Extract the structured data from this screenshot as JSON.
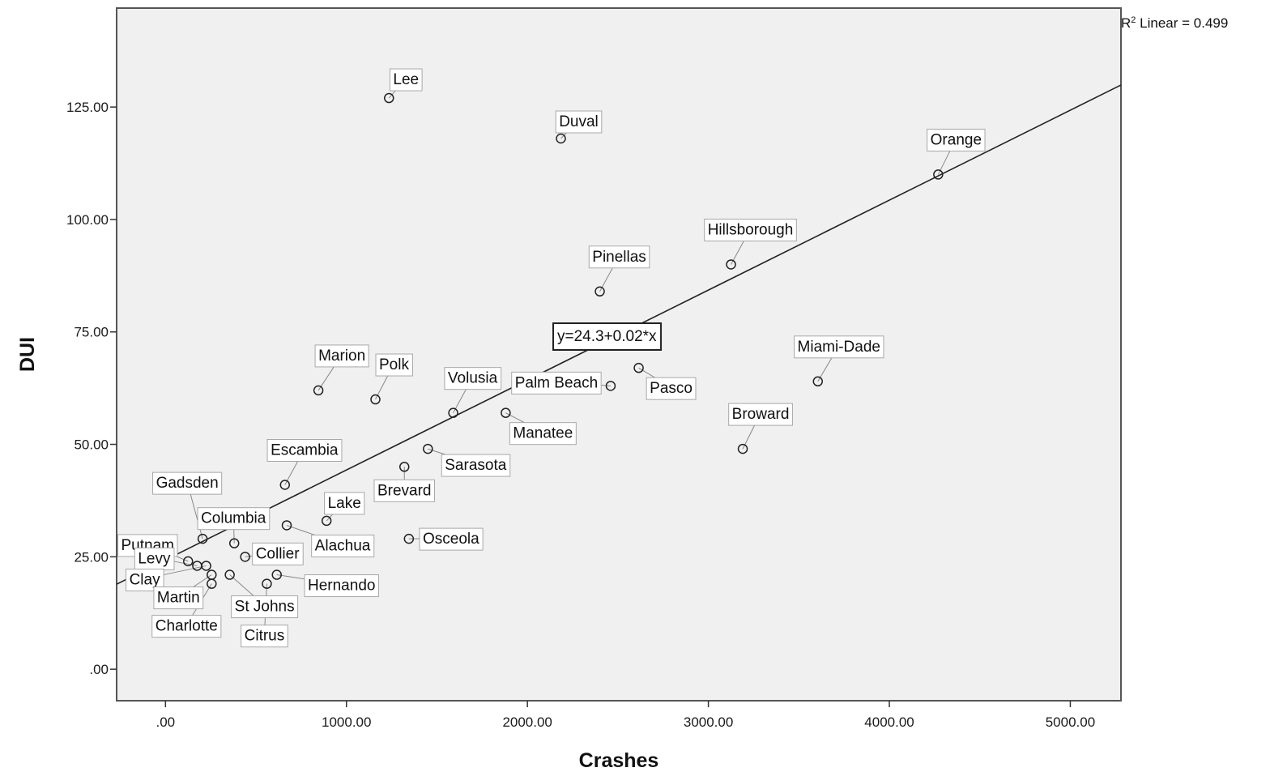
{
  "chart_data": {
    "type": "scatter",
    "title": "",
    "xlabel": "Crashes",
    "ylabel": "DUI",
    "xlim": [
      -270,
      5280
    ],
    "ylim": [
      -7,
      147
    ],
    "xticks": [
      0,
      1000,
      2000,
      3000,
      4000,
      5000
    ],
    "xtick_labels": [
      ".00",
      "1000.00",
      "2000.00",
      "3000.00",
      "4000.00",
      "5000.00"
    ],
    "yticks": [
      0,
      25,
      50,
      75,
      100,
      125
    ],
    "ytick_labels": [
      ".00",
      "25.00",
      "50.00",
      "75.00",
      "100.00",
      "125.00"
    ],
    "grid": false,
    "fit": {
      "intercept": 24.3,
      "slope": 0.02,
      "equation": "y=24.3+0.02*x",
      "r2_label": "R",
      "r2_sup": "2",
      "r2_text": " Linear = 0.499"
    },
    "points": [
      {
        "label": "Lee",
        "x": 1235,
        "y": 127
      },
      {
        "label": "Duval",
        "x": 2185,
        "y": 118
      },
      {
        "label": "Orange",
        "x": 4270,
        "y": 110
      },
      {
        "label": "Hillsborough",
        "x": 3125,
        "y": 90
      },
      {
        "label": "Pinellas",
        "x": 2400,
        "y": 84
      },
      {
        "label": "Pasco",
        "x": 2615,
        "y": 67
      },
      {
        "label": "Miami-Dade",
        "x": 3605,
        "y": 64
      },
      {
        "label": "Palm Beach",
        "x": 2460,
        "y": 63
      },
      {
        "label": "Marion",
        "x": 845,
        "y": 62
      },
      {
        "label": "Polk",
        "x": 1160,
        "y": 60
      },
      {
        "label": "Volusia",
        "x": 1590,
        "y": 57
      },
      {
        "label": "Manatee",
        "x": 1880,
        "y": 57
      },
      {
        "label": "Broward",
        "x": 3190,
        "y": 49
      },
      {
        "label": "Sarasota",
        "x": 1450,
        "y": 49
      },
      {
        "label": "Brevard",
        "x": 1320,
        "y": 45
      },
      {
        "label": "Escambia",
        "x": 660,
        "y": 41
      },
      {
        "label": "Lake",
        "x": 890,
        "y": 33
      },
      {
        "label": "Alachua",
        "x": 670,
        "y": 32
      },
      {
        "label": "Osceola",
        "x": 1345,
        "y": 29
      },
      {
        "label": "Gadsden",
        "x": 205,
        "y": 29
      },
      {
        "label": "Columbia",
        "x": 380,
        "y": 28
      },
      {
        "label": "Collier",
        "x": 440,
        "y": 25
      },
      {
        "label": "Putnam",
        "x": 125,
        "y": 24
      },
      {
        "label": "Levy",
        "x": 175,
        "y": 23
      },
      {
        "label": "Clay",
        "x": 225,
        "y": 23
      },
      {
        "label": "Martin",
        "x": 255,
        "y": 21
      },
      {
        "label": "Charlotte",
        "x": 255,
        "y": 19
      },
      {
        "label": "St Johns",
        "x": 355,
        "y": 21
      },
      {
        "label": "Hernando",
        "x": 615,
        "y": 21
      },
      {
        "label": "Citrus",
        "x": 560,
        "y": 19
      }
    ]
  }
}
